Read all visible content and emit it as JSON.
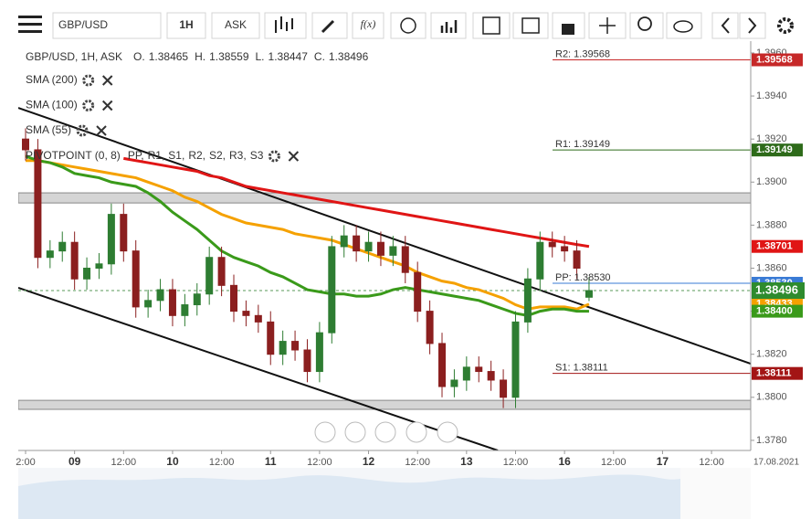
{
  "toolbar": {
    "symbol": "GBP/USD",
    "interval": "1H",
    "side": "ASK",
    "function": "f(x)"
  },
  "chart_data": {
    "type": "candlestick",
    "info": "GBP/USD, 1H, ASK",
    "ohlc_names": [
      "O.",
      "H.",
      "L.",
      "C."
    ],
    "x": [
      0,
      3,
      6,
      9,
      12,
      15,
      18,
      21,
      24,
      27,
      30,
      33,
      36,
      39,
      42,
      45,
      48,
      51,
      54,
      57,
      60,
      63,
      66,
      69,
      72,
      75,
      78,
      81,
      84,
      87,
      90,
      93,
      96,
      99,
      102,
      105,
      108,
      111,
      114,
      117,
      120,
      123,
      126,
      129,
      132,
      135,
      138
    ],
    "open": [
      1.392,
      1.3915,
      1.3865,
      1.3868,
      1.3872,
      1.3855,
      1.386,
      1.3862,
      1.3885,
      1.3868,
      1.3842,
      1.3845,
      1.385,
      1.3838,
      1.3843,
      1.3848,
      1.3865,
      1.3852,
      1.384,
      1.3838,
      1.3835,
      1.382,
      1.3826,
      1.3822,
      1.3812,
      1.383,
      1.387,
      1.3875,
      1.3868,
      1.3872,
      1.3866,
      1.387,
      1.3858,
      1.384,
      1.3825,
      1.3805,
      1.3808,
      1.3814,
      1.3812,
      1.3808,
      1.38,
      1.3835,
      1.3855,
      1.3872,
      1.387,
      1.3868,
      1.38465
    ],
    "high": [
      1.3925,
      1.392,
      1.3873,
      1.3877,
      1.3877,
      1.3865,
      1.3867,
      1.389,
      1.389,
      1.3873,
      1.385,
      1.3855,
      1.3855,
      1.3848,
      1.3853,
      1.387,
      1.387,
      1.3857,
      1.3845,
      1.3843,
      1.384,
      1.3831,
      1.3831,
      1.3827,
      1.3835,
      1.3875,
      1.388,
      1.388,
      1.3877,
      1.3877,
      1.3875,
      1.3875,
      1.3863,
      1.3845,
      1.383,
      1.3813,
      1.3819,
      1.3819,
      1.3817,
      1.3813,
      1.384,
      1.386,
      1.3877,
      1.3877,
      1.3875,
      1.3873,
      1.38559
    ],
    "low": [
      1.391,
      1.386,
      1.386,
      1.3863,
      1.385,
      1.385,
      1.3855,
      1.3857,
      1.3863,
      1.3837,
      1.3837,
      1.384,
      1.3833,
      1.3833,
      1.3838,
      1.3843,
      1.3847,
      1.3835,
      1.3833,
      1.383,
      1.3815,
      1.3815,
      1.3817,
      1.3807,
      1.3807,
      1.3825,
      1.3865,
      1.3863,
      1.3863,
      1.3861,
      1.3861,
      1.3853,
      1.3835,
      1.382,
      1.38,
      1.38,
      1.3803,
      1.3807,
      1.3803,
      1.3795,
      1.3795,
      1.383,
      1.385,
      1.3865,
      1.3863,
      1.3855,
      1.38447
    ],
    "close": [
      1.3915,
      1.3865,
      1.3868,
      1.3872,
      1.3855,
      1.386,
      1.3862,
      1.3885,
      1.3868,
      1.3842,
      1.3845,
      1.385,
      1.3838,
      1.3843,
      1.3848,
      1.3865,
      1.3852,
      1.384,
      1.3838,
      1.3835,
      1.382,
      1.3826,
      1.3822,
      1.3812,
      1.383,
      1.387,
      1.3875,
      1.3868,
      1.3872,
      1.3866,
      1.387,
      1.3858,
      1.384,
      1.3825,
      1.3805,
      1.3808,
      1.3814,
      1.3812,
      1.3808,
      1.38,
      1.3835,
      1.3855,
      1.3872,
      1.387,
      1.3868,
      1.386,
      1.38496
    ],
    "up_color": "#2e7d32",
    "down_color": "#8b1f1f",
    "last_color": "#2e8b2e",
    "series": [
      {
        "name": "SMA (200)",
        "color": "#e01515",
        "last_label": "1.38701",
        "values": [
          null,
          null,
          null,
          null,
          null,
          null,
          null,
          null,
          1.3911,
          1.391,
          1.3909,
          1.3908,
          1.3907,
          1.3906,
          1.3905,
          1.3903,
          1.3902,
          1.39,
          1.3898,
          1.3897,
          1.3896,
          1.3895,
          1.3894,
          1.3893,
          1.3892,
          1.3891,
          1.389,
          1.3889,
          1.3888,
          1.3887,
          1.3886,
          1.3885,
          1.3884,
          1.3883,
          1.3882,
          1.3881,
          1.388,
          1.3879,
          1.3878,
          1.3877,
          1.3876,
          1.3875,
          1.3874,
          1.3873,
          1.3872,
          1.3871,
          1.38701
        ]
      },
      {
        "name": "SMA (100)",
        "color": "#f5a100",
        "last_label": "1.38433",
        "values": [
          1.391,
          1.391,
          1.3909,
          1.3908,
          1.3907,
          1.3906,
          1.3905,
          1.3904,
          1.3903,
          1.3902,
          1.39,
          1.3898,
          1.3896,
          1.3893,
          1.3891,
          1.3888,
          1.3885,
          1.3883,
          1.3881,
          1.388,
          1.3879,
          1.3878,
          1.3876,
          1.3875,
          1.3874,
          1.3873,
          1.3871,
          1.3869,
          1.3867,
          1.3865,
          1.3863,
          1.3861,
          1.3858,
          1.3856,
          1.3854,
          1.3853,
          1.3851,
          1.385,
          1.3848,
          1.3846,
          1.3843,
          1.3841,
          1.3842,
          1.3842,
          1.3842,
          1.3841,
          1.38433
        ]
      },
      {
        "name": "SMA (55)",
        "color": "#3a9a1a",
        "last_label": "1.38400",
        "values": [
          1.3912,
          1.391,
          1.3909,
          1.3907,
          1.3904,
          1.3903,
          1.3902,
          1.39,
          1.3899,
          1.3898,
          1.3895,
          1.3891,
          1.3886,
          1.3882,
          1.3878,
          1.3873,
          1.3868,
          1.3865,
          1.3863,
          1.3861,
          1.3858,
          1.3856,
          1.3853,
          1.385,
          1.3849,
          1.3848,
          1.3848,
          1.3847,
          1.3847,
          1.3848,
          1.385,
          1.3851,
          1.385,
          1.3849,
          1.3848,
          1.3847,
          1.3846,
          1.3845,
          1.3843,
          1.3841,
          1.3839,
          1.3838,
          1.384,
          1.3841,
          1.3841,
          1.384,
          1.384
        ]
      }
    ],
    "indicator": {
      "name": "PIVOTPOINT (0, 8)",
      "items": [
        {
          "name": "PP,",
          "color": "#3a7bd5"
        },
        {
          "name": "R1,",
          "color": "#2e7d32"
        },
        {
          "name": "S1,",
          "color": "#c62828"
        },
        {
          "name": "R2,",
          "color": "#c62828"
        },
        {
          "name": "S2,",
          "color": "#f5a100"
        },
        {
          "name": "R3,",
          "color": "#f5a100"
        },
        {
          "name": "S3",
          "color": "#f5a100"
        }
      ]
    },
    "pivots": [
      {
        "label": "R2: 1.39568",
        "value": 1.39568,
        "axis_label": "1.39568",
        "color": "#c62828"
      },
      {
        "label": "R1: 1.39149",
        "value": 1.39149,
        "axis_label": "1.39149",
        "color": "#2e6b1a"
      },
      {
        "label": "PP: 1.38530",
        "value": 1.3853,
        "axis_label": "1.38530",
        "color": "#3a7bd5"
      },
      {
        "label": "S1: 1.38111",
        "value": 1.38111,
        "axis_label": "1.38111",
        "color": "#a31515"
      }
    ],
    "trendlines": [
      {
        "x": [
          -1.79,
          177.6
        ],
        "y": [
          1.39345,
          1.38156
        ]
      },
      {
        "x": [
          -1.79,
          115.66
        ],
        "y": [
          1.38509,
          1.37753
        ]
      }
    ],
    "zones": [
      [
        1.3895,
        1.38903
      ],
      [
        1.37986,
        1.37944
      ]
    ],
    "xlim": [
      -1.79,
      177.6
    ],
    "ylim": [
      1.37753,
      1.39655
    ],
    "xticks": [
      {
        "value": 0,
        "label": "2:00"
      },
      {
        "value": 12,
        "label": "09"
      },
      {
        "value": 24,
        "label": "12:00"
      },
      {
        "value": 36,
        "label": "10"
      },
      {
        "value": 48,
        "label": "12:00"
      },
      {
        "value": 60,
        "label": "11"
      },
      {
        "value": 72,
        "label": "12:00"
      },
      {
        "value": 84,
        "label": "12"
      },
      {
        "value": 96,
        "label": "12:00"
      },
      {
        "value": 108,
        "label": "13"
      },
      {
        "value": 120,
        "label": "12:00"
      },
      {
        "value": 132,
        "label": "16"
      },
      {
        "value": 144,
        "label": "12:00"
      },
      {
        "value": 156,
        "label": "17"
      },
      {
        "value": 168,
        "label": "12:00"
      }
    ],
    "x_end_label": "17.08.2021",
    "yticks": [
      {
        "value": 1.396,
        "label": "1.3960"
      },
      {
        "value": 1.394,
        "label": "1.3940"
      },
      {
        "value": 1.392,
        "label": "1.3920"
      },
      {
        "value": 1.39,
        "label": "1.3900"
      },
      {
        "value": 1.388,
        "label": "1.3880"
      },
      {
        "value": 1.386,
        "label": "1.3860"
      },
      {
        "value": 1.384,
        "label": "1.3840"
      },
      {
        "value": 1.382,
        "label": "1.3820"
      },
      {
        "value": 1.38,
        "label": "1.3800"
      },
      {
        "value": 1.378,
        "label": "1.3780"
      }
    ]
  }
}
